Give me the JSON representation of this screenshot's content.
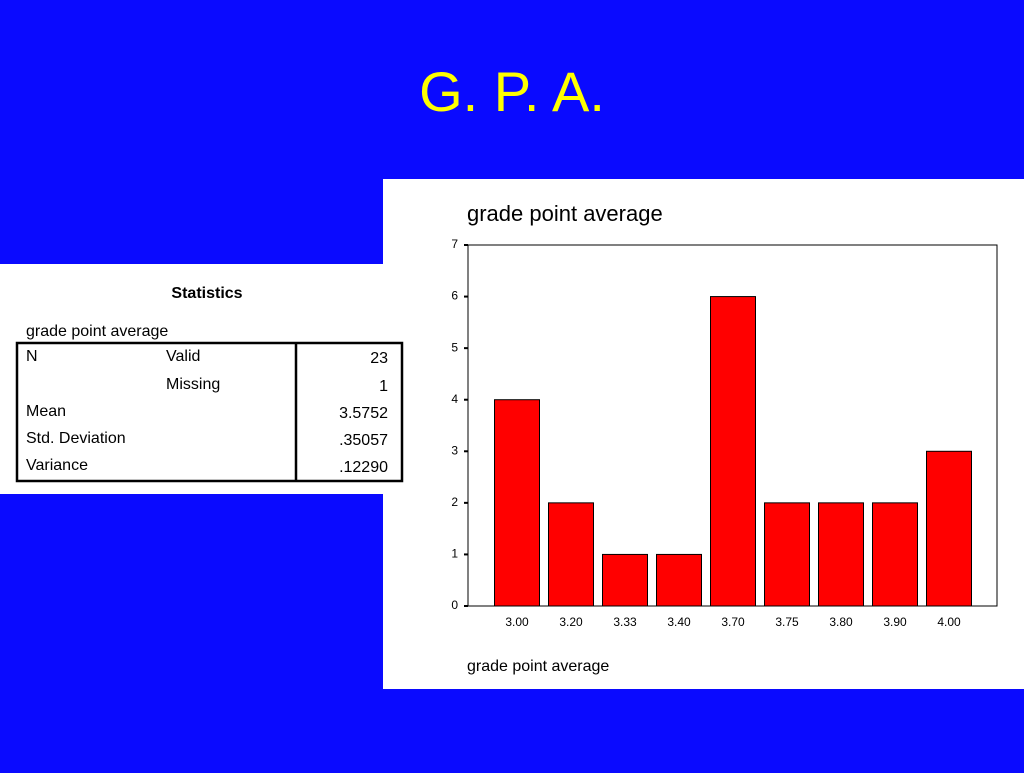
{
  "title": "G. P. A.",
  "statistics": {
    "title": "Statistics",
    "subtitle": "grade point average",
    "rows": [
      {
        "label": "N",
        "sublabel": "Valid",
        "value": "23"
      },
      {
        "sublabel": "Missing",
        "value": "1"
      },
      {
        "label": "Mean",
        "value": "3.5752"
      },
      {
        "label": "Std. Deviation",
        "value": ".35057"
      },
      {
        "label": "Variance",
        "value": ".12290"
      }
    ]
  },
  "chart_data": {
    "type": "bar",
    "title": "grade point average",
    "x_label": "grade point average",
    "categories": [
      "3.00",
      "3.20",
      "3.33",
      "3.40",
      "3.70",
      "3.75",
      "3.80",
      "3.90",
      "4.00"
    ],
    "values": [
      4,
      2,
      1,
      1,
      6,
      2,
      2,
      2,
      3
    ],
    "color": "#ff0000",
    "ylim": [
      0,
      7
    ],
    "yticks": [
      0,
      1,
      2,
      3,
      4,
      5,
      6,
      7
    ]
  }
}
